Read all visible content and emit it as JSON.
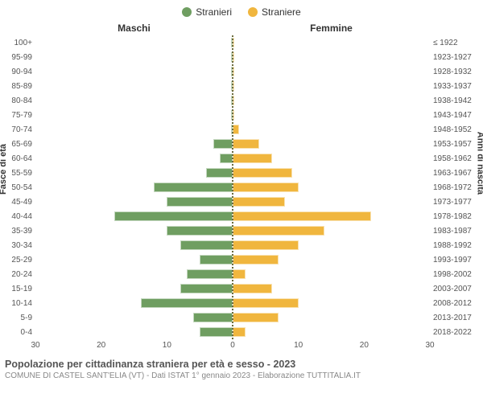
{
  "legend": {
    "male": {
      "label": "Stranieri",
      "color": "#6f9e61"
    },
    "female": {
      "label": "Straniere",
      "color": "#f0b63e"
    }
  },
  "headers": {
    "male": "Maschi",
    "female": "Femmine"
  },
  "axis_titles": {
    "left": "Fasce di età",
    "right": "Anni di nascita"
  },
  "x_axis": {
    "max": 30,
    "ticks": [
      30,
      20,
      10,
      0,
      10,
      20,
      30
    ]
  },
  "rows": [
    {
      "age": "100+",
      "birth": "≤ 1922",
      "m": 0,
      "f": 0
    },
    {
      "age": "95-99",
      "birth": "1923-1927",
      "m": 0,
      "f": 0
    },
    {
      "age": "90-94",
      "birth": "1928-1932",
      "m": 0,
      "f": 0
    },
    {
      "age": "85-89",
      "birth": "1933-1937",
      "m": 0,
      "f": 0
    },
    {
      "age": "80-84",
      "birth": "1938-1942",
      "m": 0,
      "f": 0
    },
    {
      "age": "75-79",
      "birth": "1943-1947",
      "m": 0,
      "f": 0
    },
    {
      "age": "70-74",
      "birth": "1948-1952",
      "m": 0,
      "f": 1
    },
    {
      "age": "65-69",
      "birth": "1953-1957",
      "m": 3,
      "f": 4
    },
    {
      "age": "60-64",
      "birth": "1958-1962",
      "m": 2,
      "f": 6
    },
    {
      "age": "55-59",
      "birth": "1963-1967",
      "m": 4,
      "f": 9
    },
    {
      "age": "50-54",
      "birth": "1968-1972",
      "m": 12,
      "f": 10
    },
    {
      "age": "45-49",
      "birth": "1973-1977",
      "m": 10,
      "f": 8
    },
    {
      "age": "40-44",
      "birth": "1978-1982",
      "m": 18,
      "f": 21
    },
    {
      "age": "35-39",
      "birth": "1983-1987",
      "m": 10,
      "f": 14
    },
    {
      "age": "30-34",
      "birth": "1988-1992",
      "m": 8,
      "f": 10
    },
    {
      "age": "25-29",
      "birth": "1993-1997",
      "m": 5,
      "f": 7
    },
    {
      "age": "20-24",
      "birth": "1998-2002",
      "m": 7,
      "f": 2
    },
    {
      "age": "15-19",
      "birth": "2003-2007",
      "m": 8,
      "f": 6
    },
    {
      "age": "10-14",
      "birth": "2008-2012",
      "m": 14,
      "f": 10
    },
    {
      "age": "5-9",
      "birth": "2013-2017",
      "m": 6,
      "f": 7
    },
    {
      "age": "0-4",
      "birth": "2018-2022",
      "m": 5,
      "f": 2
    }
  ],
  "colors": {
    "male_bar": "#6f9e61",
    "female_bar": "#f0b63e",
    "background": "#ffffff",
    "grid": "#eeeeee",
    "center_line": "#6b6b3d",
    "text": "#555555"
  },
  "footer": {
    "title": "Popolazione per cittadinanza straniera per età e sesso - 2023",
    "subtitle": "COMUNE DI CASTEL SANT'ELIA (VT) - Dati ISTAT 1° gennaio 2023 - Elaborazione TUTTITALIA.IT"
  }
}
